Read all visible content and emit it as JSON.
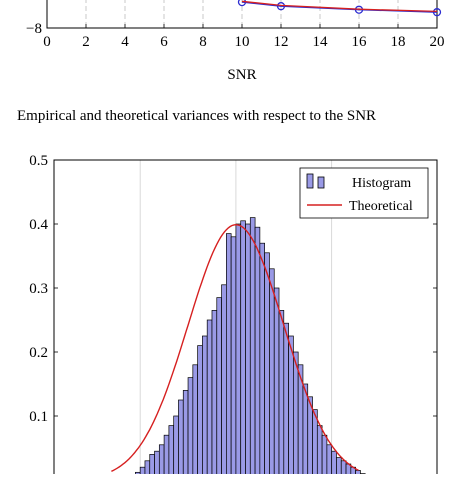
{
  "chart_data": [
    {
      "type": "line",
      "xlabel": "SNR",
      "ylabel": "",
      "xlim": [
        0,
        20
      ],
      "ylim": [
        -8,
        -6.9
      ],
      "x_ticks": [
        "0",
        "2",
        "4",
        "6",
        "8",
        "10",
        "12",
        "14",
        "16",
        "18",
        "20"
      ],
      "y_ticks": [
        "−8"
      ],
      "grid": "vertical dashed",
      "series": [
        {
          "color": "#2c2cd0",
          "marker": "circle",
          "x": [
            10,
            12,
            16,
            20
          ],
          "y": [
            -7.05,
            -7.2,
            -7.33,
            -7.42
          ]
        },
        {
          "color": "#d62020",
          "marker": "none",
          "x": [
            10,
            12,
            16,
            20
          ],
          "y": [
            -7.02,
            -7.17,
            -7.31,
            -7.39
          ]
        }
      ]
    },
    {
      "type": "bar",
      "title": "",
      "ylim": [
        0,
        0.5
      ],
      "y_ticks": [
        "0.1",
        "0.2",
        "0.3",
        "0.4",
        "0.5"
      ],
      "grid": "vertical",
      "legend_position": "top-right",
      "series": [
        {
          "name": "Histogram",
          "color": "#9a9ae6",
          "x": [
            -2.05,
            -1.95,
            -1.85,
            -1.75,
            -1.65,
            -1.55,
            -1.45,
            -1.35,
            -1.25,
            -1.15,
            -1.05,
            -0.95,
            -0.85,
            -0.75,
            -0.65,
            -0.55,
            -0.45,
            -0.35,
            -0.25,
            -0.15,
            -0.05,
            0.05,
            0.15,
            0.25,
            0.35,
            0.45,
            0.55,
            0.65,
            0.75,
            0.85,
            0.95,
            1.05,
            1.15,
            1.25,
            1.35,
            1.45,
            1.55,
            1.65,
            1.75,
            1.85,
            1.95,
            2.05,
            2.15,
            2.25,
            2.35,
            2.45,
            2.55,
            2.65
          ],
          "y": [
            0.012,
            0.02,
            0.03,
            0.04,
            0.045,
            0.055,
            0.07,
            0.085,
            0.1,
            0.125,
            0.14,
            0.16,
            0.18,
            0.21,
            0.225,
            0.25,
            0.265,
            0.285,
            0.305,
            0.385,
            0.38,
            0.4,
            0.405,
            0.4,
            0.41,
            0.395,
            0.37,
            0.355,
            0.33,
            0.3,
            0.265,
            0.245,
            0.225,
            0.2,
            0.18,
            0.15,
            0.13,
            0.11,
            0.085,
            0.07,
            0.055,
            0.045,
            0.035,
            0.03,
            0.025,
            0.02,
            0.015,
            0.01
          ]
        },
        {
          "name": "Theoretical",
          "type": "line",
          "color": "#d62020",
          "mean": 0.0,
          "std": 1.0
        }
      ]
    }
  ],
  "caption": "Empirical and theoretical variances with respect to the SNR"
}
